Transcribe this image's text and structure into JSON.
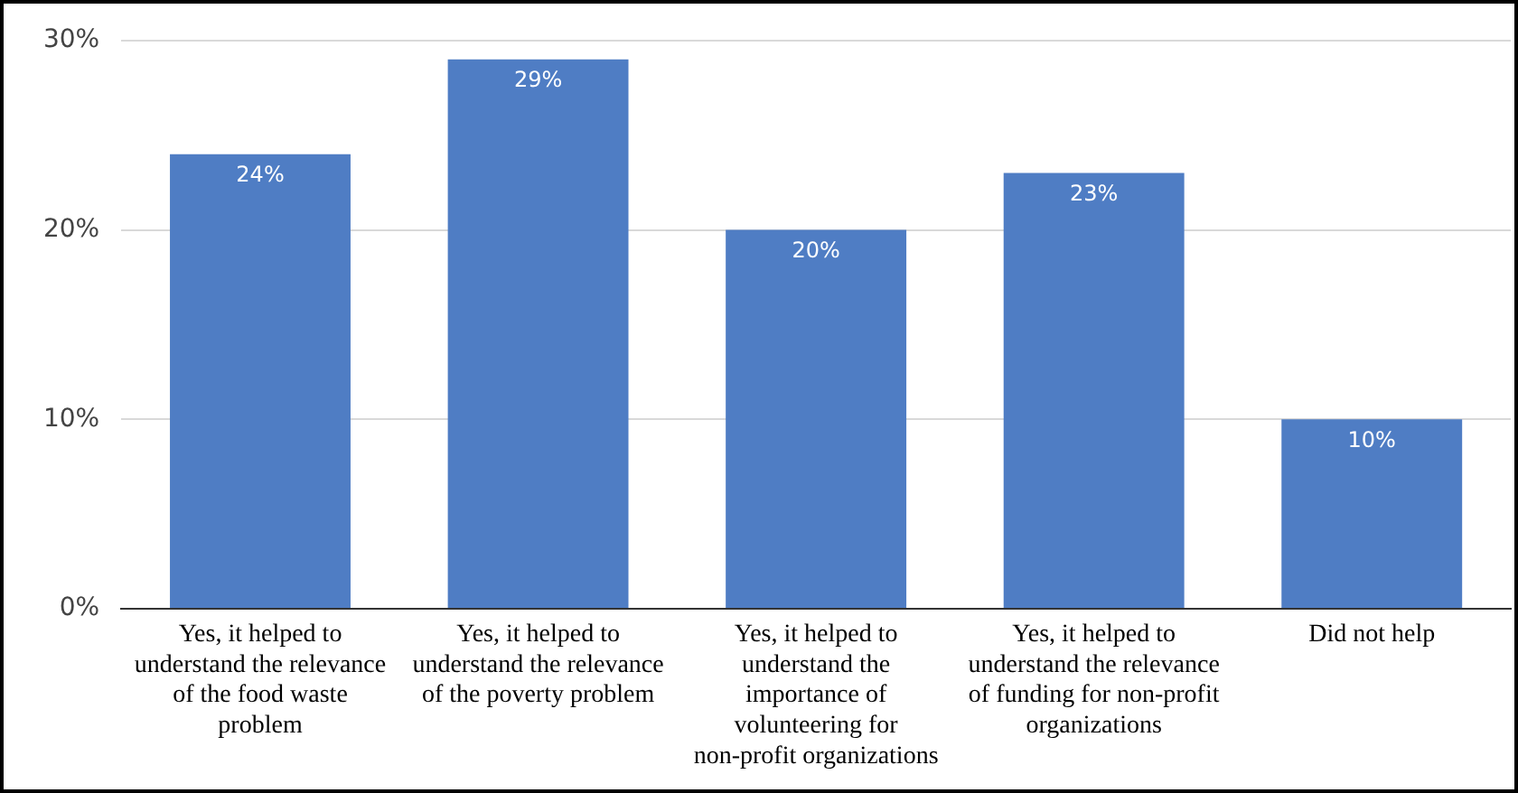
{
  "chart_data": {
    "type": "bar",
    "categories": [
      "Yes, it helped to understand the relevance of the food waste problem",
      "Yes, it helped to understand the relevance of the poverty problem",
      "Yes, it helped to understand the importance of volunteering for non-profit organizations",
      "Yes, it helped to understand the relevance of funding for non-profit organizations",
      "Did not help"
    ],
    "values": [
      24,
      29,
      20,
      23,
      10
    ],
    "value_labels": [
      "24%",
      "29%",
      "20%",
      "23%",
      "10%"
    ],
    "color": "#4f7dc4",
    "ylim": [
      0,
      30
    ],
    "yticks": [
      {
        "value": 0,
        "label": "0%"
      },
      {
        "value": 10,
        "label": "10%"
      },
      {
        "value": 20,
        "label": "20%"
      },
      {
        "value": 30,
        "label": "30%"
      }
    ],
    "grid": "y"
  }
}
